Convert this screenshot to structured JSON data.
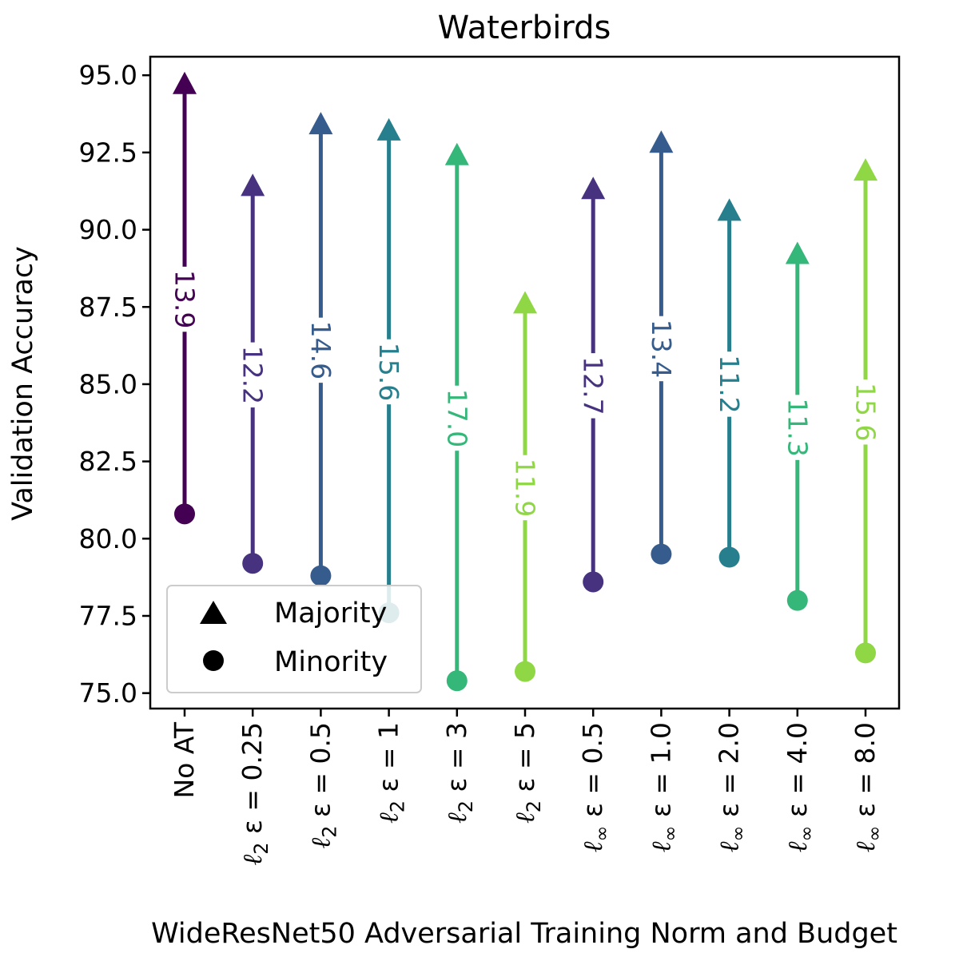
{
  "chart_data": {
    "type": "scatter",
    "title": "Waterbirds",
    "xlabel": "WideResNet50 Adversarial Training Norm and Budget",
    "ylabel": "Validation Accuracy",
    "ylim": [
      74.5,
      95.6
    ],
    "yticks": [
      "75.0",
      "77.5",
      "80.0",
      "82.5",
      "85.0",
      "87.5",
      "90.0",
      "92.5",
      "95.0"
    ],
    "ytick_values": [
      75.0,
      77.5,
      80.0,
      82.5,
      85.0,
      87.5,
      90.0,
      92.5,
      95.0
    ],
    "grid": false,
    "categories": [
      {
        "norm": "",
        "label": "No AT"
      },
      {
        "norm": "ℓ",
        "sub": "2",
        "label": " ε = 0.25"
      },
      {
        "norm": "ℓ",
        "sub": "2",
        "label": " ε = 0.5"
      },
      {
        "norm": "ℓ",
        "sub": "2",
        "label": " ε = 1"
      },
      {
        "norm": "ℓ",
        "sub": "2",
        "label": " ε = 3"
      },
      {
        "norm": "ℓ",
        "sub": "2",
        "label": " ε = 5"
      },
      {
        "norm": "ℓ",
        "sub": "∞",
        "label": " ε = 0.5"
      },
      {
        "norm": "ℓ",
        "sub": "∞",
        "label": " ε = 1.0"
      },
      {
        "norm": "ℓ",
        "sub": "∞",
        "label": " ε = 2.0"
      },
      {
        "norm": "ℓ",
        "sub": "∞",
        "label": " ε = 4.0"
      },
      {
        "norm": "ℓ",
        "sub": "∞",
        "label": " ε = 8.0"
      }
    ],
    "series": [
      {
        "name": "Majority",
        "marker": "triangle",
        "values": [
          94.7,
          91.4,
          93.4,
          93.2,
          92.4,
          87.6,
          91.3,
          92.8,
          90.6,
          89.2,
          91.9
        ]
      },
      {
        "name": "Minority",
        "marker": "circle",
        "values": [
          80.8,
          79.2,
          78.8,
          77.6,
          75.4,
          75.7,
          78.6,
          79.5,
          79.4,
          78.0,
          76.3
        ]
      }
    ],
    "gap_labels": [
      "13.9",
      "12.2",
      "14.6",
      "15.6",
      "17.0",
      "11.9",
      "12.7",
      "13.4",
      "11.2",
      "11.3",
      "15.6"
    ],
    "colors": [
      "#440154",
      "#46327e",
      "#365c8d",
      "#277f8e",
      "#35b779",
      "#8fd744",
      "#46327e",
      "#365c8d",
      "#277f8e",
      "#35b779",
      "#8fd744"
    ],
    "legend": {
      "position": "lower-left",
      "entries": [
        "Majority",
        "Minority"
      ]
    }
  }
}
